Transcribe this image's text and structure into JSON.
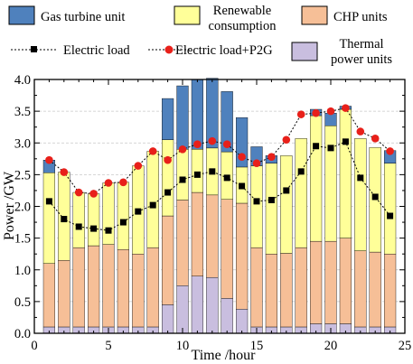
{
  "chart_data": {
    "type": "bar",
    "stacked": true,
    "xlabel": "Time /hour",
    "ylabel": "Power /GW",
    "xlim": [
      0,
      25
    ],
    "ylim": [
      0,
      4.0
    ],
    "x_ticks": [
      "0",
      "5",
      "10",
      "15",
      "20",
      "25"
    ],
    "y_ticks": [
      "0.0",
      "0.5",
      "1.0",
      "1.5",
      "2.0",
      "2.5",
      "3.0",
      "3.5",
      "4.0"
    ],
    "grid": "horizontal",
    "legend_position": "top",
    "x": [
      1,
      2,
      3,
      4,
      5,
      6,
      7,
      8,
      9,
      10,
      11,
      12,
      13,
      14,
      15,
      16,
      17,
      18,
      19,
      20,
      21,
      22,
      23,
      24
    ],
    "series": [
      {
        "name": "Thermal power units",
        "color": "#c9bedf",
        "values": [
          0.1,
          0.1,
          0.1,
          0.1,
          0.1,
          0.1,
          0.1,
          0.1,
          0.45,
          0.75,
          0.9,
          0.88,
          0.55,
          0.38,
          0.1,
          0.1,
          0.1,
          0.1,
          0.15,
          0.15,
          0.15,
          0.1,
          0.1,
          0.1
        ]
      },
      {
        "name": "CHP units",
        "color": "#f6bf97",
        "values": [
          1.0,
          1.05,
          1.25,
          1.28,
          1.3,
          1.22,
          1.15,
          1.25,
          1.4,
          1.35,
          1.32,
          1.3,
          1.56,
          1.67,
          1.25,
          1.15,
          1.16,
          1.25,
          1.3,
          1.3,
          1.35,
          1.2,
          1.18,
          1.15
        ]
      },
      {
        "name": "Renewable consumption",
        "color": "#ffff99",
        "values": [
          1.43,
          1.39,
          0.87,
          0.82,
          0.97,
          1.06,
          1.39,
          1.52,
          1.2,
          0.8,
          0.68,
          0.74,
          0.75,
          0.57,
          1.29,
          1.43,
          1.54,
          1.72,
          1.98,
          1.82,
          2.03,
          1.77,
          1.65,
          1.43
        ]
      },
      {
        "name": "Gas turbine unit",
        "color": "#4f81bd",
        "values": [
          0.2,
          0.0,
          0.0,
          0.0,
          0.0,
          0.0,
          0.0,
          0.0,
          0.65,
          1.0,
          1.1,
          1.1,
          0.95,
          0.78,
          0.3,
          0.12,
          0.0,
          0.0,
          0.1,
          0.2,
          0.05,
          0.0,
          0.0,
          0.2
        ]
      },
      {
        "name": "Electric load",
        "kind": "line",
        "color": "#000000",
        "values": [
          2.08,
          1.8,
          1.68,
          1.65,
          1.62,
          1.75,
          1.92,
          2.02,
          2.22,
          2.42,
          2.5,
          2.55,
          2.45,
          2.32,
          2.08,
          2.1,
          2.25,
          2.55,
          2.95,
          2.92,
          3.02,
          2.45,
          2.15,
          1.85
        ]
      },
      {
        "name": "Electric load+P2G",
        "kind": "line",
        "color": "#e8201a",
        "values": [
          2.73,
          2.54,
          2.22,
          2.2,
          2.37,
          2.38,
          2.64,
          2.87,
          2.73,
          2.9,
          2.98,
          3.03,
          2.98,
          2.78,
          2.68,
          2.78,
          3.05,
          3.45,
          3.47,
          3.5,
          3.55,
          3.18,
          3.07,
          2.87
        ]
      }
    ],
    "legend": {
      "gas": "Gas turbine unit",
      "renew_line1": "Renewable",
      "renew_line2": "consumption",
      "chp": "CHP units",
      "load": "Electric load",
      "load_p2g": "Electric load+P2G",
      "thermal_line1": "Thermal",
      "thermal_line2": "power units"
    }
  }
}
